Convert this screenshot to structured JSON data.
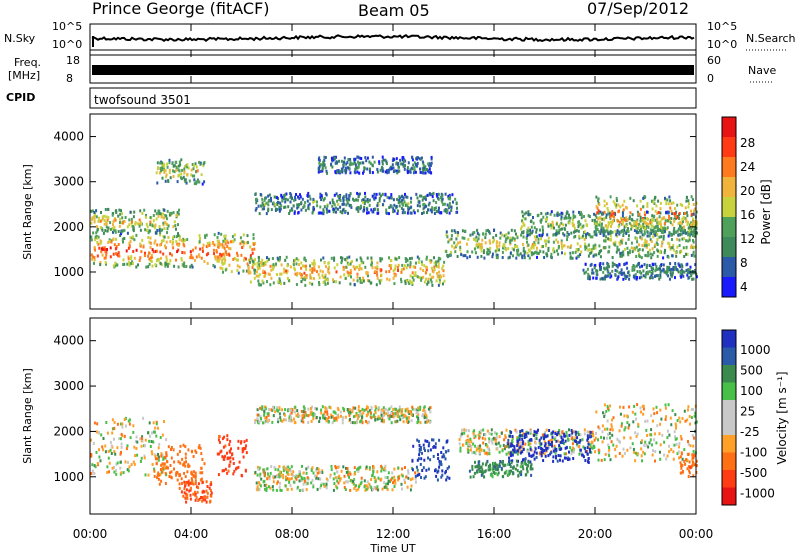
{
  "header": {
    "station": "Prince George (fitACF)",
    "beam": "Beam 05",
    "date": "07/Sep/2012"
  },
  "panels": {
    "nsky": {
      "label": "N.Sky",
      "ticks": [
        "10^5",
        "10^0"
      ]
    },
    "nsearch": {
      "label": "N.Search",
      "ticks": [
        "10^5",
        "10^0"
      ]
    },
    "freq": {
      "label_line1": "Freq.",
      "label_line2": "[MHz]",
      "ticks": [
        "18",
        "8"
      ]
    },
    "nave": {
      "label": "Nave",
      "ticks": [
        "60",
        "0"
      ]
    },
    "cpid": {
      "label": "CPID",
      "value": "twofsound 3501"
    }
  },
  "axes": {
    "ylabel": "Slant Range [km]",
    "xlabel": "Time UT",
    "yticks": [
      "4000",
      "3000",
      "2000",
      "1000"
    ],
    "xticks": [
      "00:00",
      "04:00",
      "08:00",
      "12:00",
      "16:00",
      "20:00",
      "00:00"
    ]
  },
  "power_colorbar": {
    "label": "Power [dB]",
    "ticks": [
      "28",
      "24",
      "20",
      "16",
      "12",
      "8",
      "4"
    ],
    "colors": [
      "#1a1aff",
      "#2a5aa8",
      "#3f8a5a",
      "#4fa05a",
      "#c8d23c",
      "#f0b43c",
      "#ff7a1e",
      "#ff3a14",
      "#e81414"
    ]
  },
  "velocity_colorbar": {
    "label": "Velocity [m s⁻¹]",
    "ticks": [
      "1000",
      "500",
      "100",
      "25",
      "-25",
      "-100",
      "-500",
      "-1000"
    ],
    "colors": [
      "#2030c0",
      "#2a5aa8",
      "#3a8a50",
      "#48c048",
      "#c8c8c8",
      "#c8c8c8",
      "#ffa028",
      "#ff7014",
      "#ff3c14",
      "#e81414"
    ]
  },
  "chart_data": {
    "type": "heatmap",
    "x_range_hours": [
      0,
      24
    ],
    "y_range_km": [
      180,
      4500
    ],
    "power_bands": [
      {
        "start": 0,
        "end": 5.5,
        "center": 1500,
        "width": 400,
        "level": 0.85
      },
      {
        "start": 0,
        "end": 3.5,
        "center": 2150,
        "width": 300,
        "level": 0.6
      },
      {
        "start": 2.6,
        "end": 4.5,
        "center": 3250,
        "width": 300,
        "level": 0.55
      },
      {
        "start": 5.0,
        "end": 6.5,
        "center": 1450,
        "width": 500,
        "level": 0.8
      },
      {
        "start": 6.2,
        "end": 14.0,
        "center": 1050,
        "width": 350,
        "level": 0.7
      },
      {
        "start": 6.5,
        "end": 14.5,
        "center": 2550,
        "width": 250,
        "level": 0.35
      },
      {
        "start": 9.0,
        "end": 13.5,
        "center": 3400,
        "width": 200,
        "level": 0.3
      },
      {
        "start": 14.0,
        "end": 24,
        "center": 1650,
        "width": 350,
        "level": 0.55
      },
      {
        "start": 17.0,
        "end": 24,
        "center": 2100,
        "width": 300,
        "level": 0.5
      },
      {
        "start": 20.0,
        "end": 24,
        "center": 2300,
        "width": 450,
        "level": 0.75
      },
      {
        "start": 19.5,
        "end": 24,
        "center": 1050,
        "width": 200,
        "level": 0.3
      }
    ],
    "velocity_bands": [
      {
        "start": 0,
        "end": 3.0,
        "center": 1700,
        "width": 700,
        "vel": 0
      },
      {
        "start": 2.5,
        "end": 4.5,
        "center": 1300,
        "width": 500,
        "vel": -300
      },
      {
        "start": 3.5,
        "end": 4.8,
        "center": 700,
        "width": 250,
        "vel": -500
      },
      {
        "start": 5.0,
        "end": 6.2,
        "center": 1500,
        "width": 500,
        "vel": -600
      },
      {
        "start": 6.5,
        "end": 13.0,
        "center": 1000,
        "width": 300,
        "vel": 0
      },
      {
        "start": 6.5,
        "end": 13.5,
        "center": 2400,
        "width": 200,
        "vel": 0
      },
      {
        "start": 12.7,
        "end": 14.2,
        "center": 1400,
        "width": 500,
        "vel": 700
      },
      {
        "start": 14.5,
        "end": 20.0,
        "center": 1800,
        "width": 300,
        "vel": 0
      },
      {
        "start": 16.5,
        "end": 19.8,
        "center": 1700,
        "width": 400,
        "vel": 800
      },
      {
        "start": 15.0,
        "end": 17.5,
        "center": 1200,
        "width": 200,
        "vel": 200
      },
      {
        "start": 20.0,
        "end": 24,
        "center": 2000,
        "width": 700,
        "vel": 0
      },
      {
        "start": 23.3,
        "end": 24,
        "center": 1300,
        "width": 300,
        "vel": -400
      }
    ],
    "freq_mhz": [
      10,
      12
    ],
    "nave": 60
  }
}
